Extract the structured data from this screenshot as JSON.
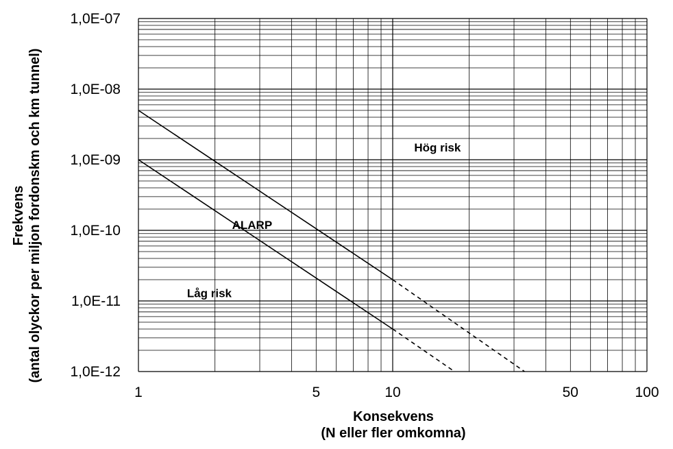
{
  "chart_data": {
    "type": "line",
    "title": "",
    "xscale": "log",
    "yscale": "log",
    "xlim": [
      1,
      100
    ],
    "ylim": [
      1e-12,
      1e-07
    ],
    "grid": true,
    "x_tick_labels": [
      {
        "value": 1,
        "label": "1"
      },
      {
        "value": 5,
        "label": "5"
      },
      {
        "value": 10,
        "label": "10"
      },
      {
        "value": 50,
        "label": "50"
      },
      {
        "value": 100,
        "label": "100"
      }
    ],
    "y_tick_labels": [
      {
        "value": 1e-07,
        "label": "1,0E-07"
      },
      {
        "value": 1e-08,
        "label": "1,0E-08"
      },
      {
        "value": 1e-09,
        "label": "1,0E-09"
      },
      {
        "value": 1e-10,
        "label": "1,0E-10"
      },
      {
        "value": 1e-11,
        "label": "1,0E-11"
      },
      {
        "value": 1e-12,
        "label": "1,0E-12"
      }
    ],
    "xlabel": [
      "Konsekvens",
      "(N eller fler omkomna)"
    ],
    "ylabel": [
      "Frekvens",
      "(antal olyckor per miljon fordonskm och km tunnel)"
    ],
    "series": [
      {
        "solid": {
          "x": [
            1,
            10
          ],
          "y": [
            5e-09,
            2e-11
          ]
        },
        "dashed": {
          "x": [
            10,
            33
          ],
          "y": [
            2e-11,
            1e-12
          ]
        }
      },
      {
        "solid": {
          "x": [
            1,
            10
          ],
          "y": [
            1e-09,
            4e-12
          ]
        },
        "dashed": {
          "x": [
            10,
            17.5
          ],
          "y": [
            4e-12,
            1e-12
          ]
        }
      }
    ],
    "annotations": [
      {
        "text": "Hög risk",
        "x": 15,
        "y": 1.5e-09
      },
      {
        "text": "ALARP",
        "x": 2.8,
        "y": 1.2e-10
      },
      {
        "text": "Låg risk",
        "x": 1.9,
        "y": 1.3e-11
      }
    ]
  }
}
